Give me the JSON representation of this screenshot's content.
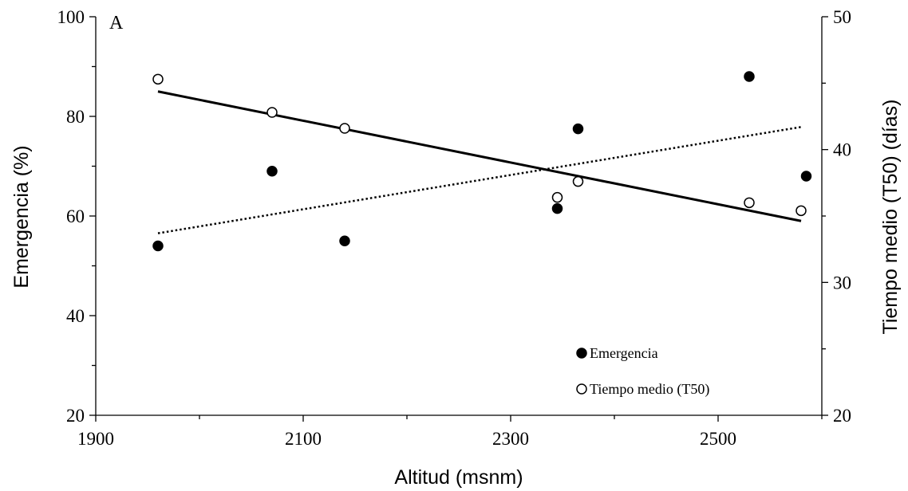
{
  "chart_data": {
    "type": "scatter",
    "panel_label": "A",
    "xlabel": "Altitud (msnm)",
    "ylabel_left": "Emergencia (%)",
    "ylabel_right": "Tiempo medio (T50) (días)",
    "xlim": [
      1900,
      2600
    ],
    "ylim_left": [
      20,
      100
    ],
    "ylim_right": [
      20,
      50
    ],
    "x_ticks": [
      1900,
      2100,
      2300,
      2500
    ],
    "y_ticks_left": [
      20,
      40,
      60,
      80,
      100
    ],
    "y_ticks_right": [
      20,
      30,
      40,
      50
    ],
    "grid": false,
    "legend_position": "bottom-right",
    "series": [
      {
        "name": "Emergencia",
        "axis": "left",
        "marker": "filled-circle",
        "x": [
          1960,
          2070,
          2140,
          2345,
          2365,
          2530,
          2585
        ],
        "y": [
          54,
          69,
          55,
          61.5,
          77.5,
          88,
          68
        ],
        "trend": {
          "style": "solid",
          "x": [
            1960,
            2580
          ],
          "y": [
            85,
            59
          ]
        }
      },
      {
        "name": "Tiempo medio (T50)",
        "axis": "right",
        "marker": "open-circle",
        "x": [
          1960,
          2070,
          2140,
          2345,
          2365,
          2530,
          2580
        ],
        "y": [
          45.3,
          42.8,
          41.6,
          36.4,
          37.6,
          36,
          35.4
        ],
        "trend": {
          "style": "dotted",
          "x": [
            1960,
            2580
          ],
          "y": [
            33.7,
            41.7
          ]
        }
      }
    ]
  }
}
